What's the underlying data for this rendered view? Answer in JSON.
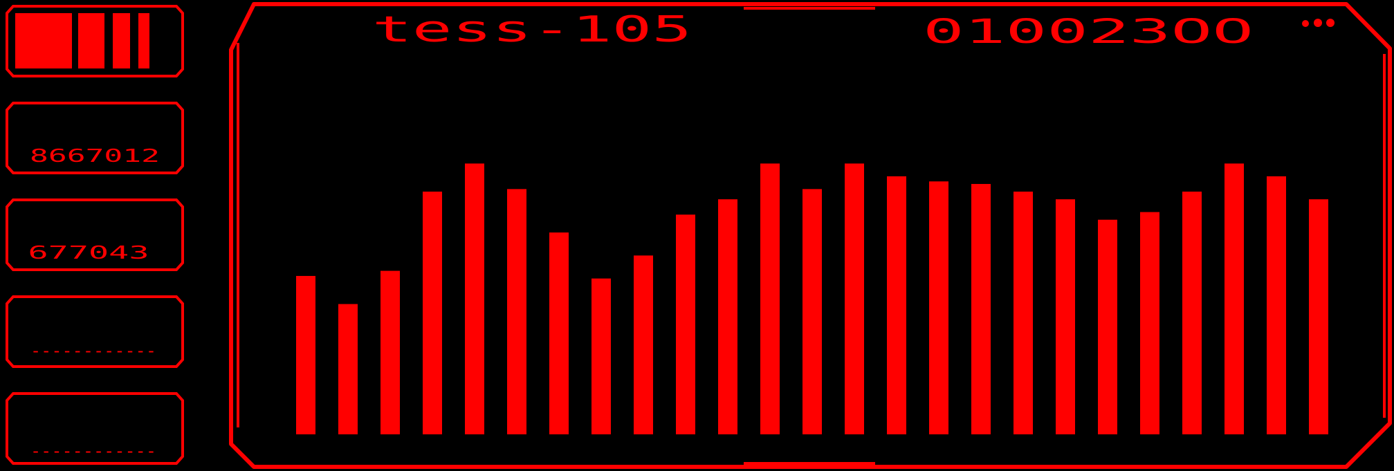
{
  "theme": {
    "accent": "#ff0000",
    "background": "#000000"
  },
  "header": {
    "title": "tess-105",
    "code": "010023OO",
    "menu_icon": "three-dots-icon"
  },
  "sidebar": {
    "logo_icon": "signal-bars-icon",
    "readouts": [
      {
        "value": "8667012"
      },
      {
        "value": "677043"
      },
      {
        "value": "------------"
      },
      {
        "value": "------------"
      }
    ]
  },
  "chart_data": {
    "type": "bar",
    "values": [
      62,
      51,
      64,
      95,
      106,
      96,
      79,
      61,
      70,
      86,
      92,
      106,
      96,
      106,
      101,
      99,
      98,
      95,
      92,
      84,
      87,
      95,
      106,
      101,
      92
    ],
    "ylim": [
      0,
      170
    ],
    "color": "#ff0000"
  }
}
